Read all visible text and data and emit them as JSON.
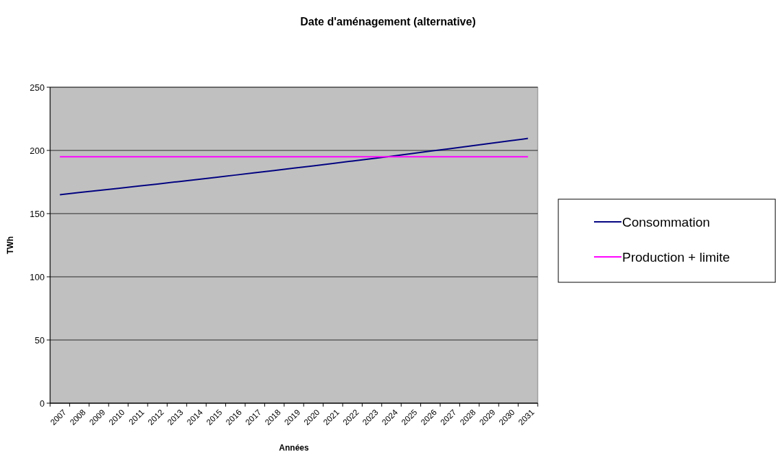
{
  "chart_data": {
    "type": "line",
    "title": "Date d'aménagement (alternative)",
    "xlabel": "Années",
    "ylabel": "TWh",
    "categories": [
      "2007",
      "2008",
      "2009",
      "2010",
      "2011",
      "2012",
      "2013",
      "2014",
      "2015",
      "2016",
      "2017",
      "2018",
      "2019",
      "2020",
      "2021",
      "2022",
      "2023",
      "2024",
      "2025",
      "2026",
      "2027",
      "2028",
      "2029",
      "2030",
      "2031"
    ],
    "series": [
      {
        "name": "Consommation",
        "color": "#000080",
        "values": [
          165,
          166.7,
          168.3,
          170,
          171.7,
          173.4,
          175.2,
          176.9,
          178.7,
          180.5,
          182.3,
          184.1,
          186,
          187.8,
          189.7,
          191.6,
          193.5,
          195.4,
          197.4,
          199.4,
          201.4,
          203.4,
          205.4,
          207.5,
          209.5
        ]
      },
      {
        "name": "Production + limite",
        "color": "#ff00ff",
        "values": [
          195,
          195,
          195,
          195,
          195,
          195,
          195,
          195,
          195,
          195,
          195,
          195,
          195,
          195,
          195,
          195,
          195,
          195,
          195,
          195,
          195,
          195,
          195,
          195,
          195
        ]
      }
    ],
    "ylim": [
      0,
      250
    ],
    "yticks": [
      0,
      50,
      100,
      150,
      200,
      250
    ],
    "grid": "y",
    "legend": "right",
    "marker": "none",
    "line_style": "solid"
  }
}
